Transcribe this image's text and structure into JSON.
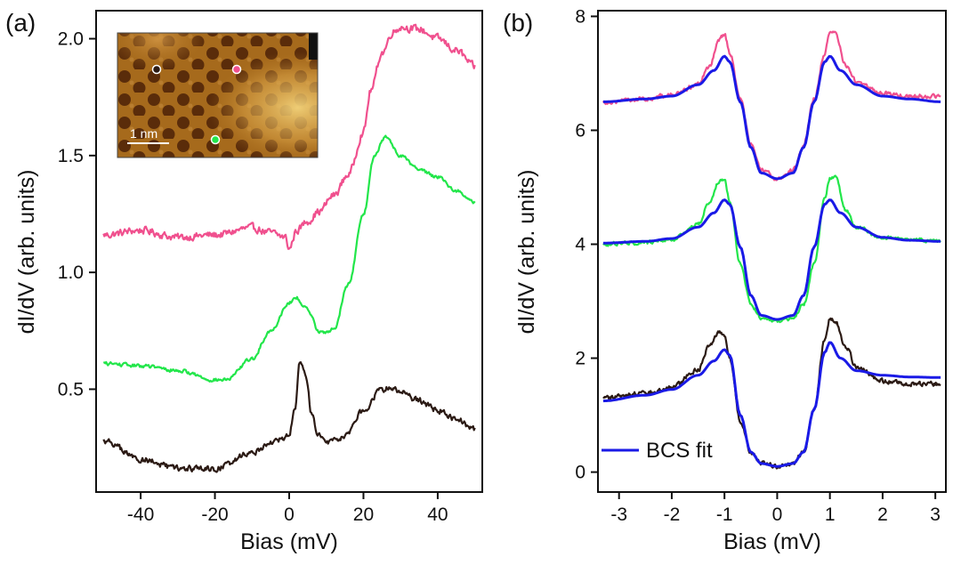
{
  "colors": {
    "pink": "#f0508e",
    "green": "#22e64a",
    "black": "#2b1a14",
    "fit": "#1a1ae6"
  },
  "chart_data": [
    {
      "panel": "(a)",
      "type": "line",
      "xlabel": "Bias (mV)",
      "ylabel": "dI/dV (arb. units)",
      "xlim": [
        -52,
        52
      ],
      "ylim": [
        0.06,
        2.12
      ],
      "xticks": [
        -40,
        -20,
        0,
        20,
        40
      ],
      "yticks": [
        0.5,
        1.0,
        1.5,
        2.0
      ],
      "ytick_labels": [
        "0.5",
        "1.0",
        "1.5",
        "2.0"
      ],
      "grid": false,
      "series": [
        {
          "color": "#f0508e",
          "noise": 0.025,
          "x": [
            -50,
            -40,
            -30,
            -20,
            -10,
            -5,
            -1,
            0,
            2,
            5,
            8,
            12,
            16,
            20,
            22,
            25,
            28,
            30,
            35,
            40,
            45,
            50
          ],
          "y": [
            1.16,
            1.18,
            1.15,
            1.16,
            1.19,
            1.17,
            1.15,
            1.1,
            1.18,
            1.22,
            1.26,
            1.33,
            1.42,
            1.6,
            1.78,
            1.94,
            2.03,
            2.05,
            2.04,
            2.0,
            1.95,
            1.88
          ]
        },
        {
          "color": "#22e64a",
          "noise": 0.012,
          "x": [
            -50,
            -40,
            -30,
            -20,
            -17,
            -10,
            -5,
            0,
            2,
            5,
            8,
            10,
            12,
            16,
            20,
            23,
            26,
            30,
            35,
            40,
            45,
            50
          ],
          "y": [
            0.61,
            0.6,
            0.58,
            0.54,
            0.54,
            0.63,
            0.75,
            0.87,
            0.89,
            0.84,
            0.75,
            0.74,
            0.76,
            0.95,
            1.25,
            1.5,
            1.58,
            1.5,
            1.44,
            1.41,
            1.35,
            1.3
          ]
        },
        {
          "color": "#2b1a14",
          "noise": 0.02,
          "x": [
            -50,
            -40,
            -30,
            -20,
            -10,
            -5,
            0,
            1.5,
            3,
            4.5,
            6,
            8,
            10,
            15,
            20,
            25,
            28,
            30,
            35,
            40,
            45,
            50
          ],
          "y": [
            0.28,
            0.2,
            0.16,
            0.16,
            0.23,
            0.27,
            0.3,
            0.42,
            0.62,
            0.55,
            0.4,
            0.3,
            0.27,
            0.3,
            0.41,
            0.5,
            0.51,
            0.49,
            0.45,
            0.41,
            0.37,
            0.33
          ]
        }
      ],
      "inset": {
        "type": "image",
        "description": "STM topograph",
        "scale_bar_label": "1 nm",
        "markers": [
          {
            "name": "black-site",
            "color": "#2b1a14"
          },
          {
            "name": "pink-site",
            "color": "#f0508e"
          },
          {
            "name": "green-site",
            "color": "#22e64a"
          }
        ]
      }
    },
    {
      "panel": "(b)",
      "type": "line",
      "xlabel": "Bias (mV)",
      "ylabel": "dI/dV (arb. units)",
      "xlim": [
        -3.4,
        3.2
      ],
      "ylim": [
        -0.35,
        8.1
      ],
      "xticks": [
        -3,
        -2,
        -1,
        0,
        1,
        2,
        3
      ],
      "yticks": [
        0,
        2,
        4,
        6,
        8
      ],
      "ytick_labels": [
        "0",
        "2",
        "4",
        "6",
        "8"
      ],
      "grid": false,
      "legend": {
        "placement": "bottom-left",
        "entries": [
          {
            "name": "BCS fit",
            "color": "#1a1ae6"
          }
        ]
      },
      "series": [
        {
          "color": "#f0508e",
          "noise": 0.06,
          "x": [
            -3.3,
            -2.5,
            -2.0,
            -1.5,
            -1.3,
            -1.1,
            -1.0,
            -0.9,
            -0.7,
            -0.5,
            -0.3,
            0.0,
            0.3,
            0.5,
            0.7,
            0.9,
            1.0,
            1.1,
            1.3,
            1.5,
            2.0,
            2.5,
            3.1
          ],
          "y": [
            6.5,
            6.55,
            6.62,
            6.8,
            7.1,
            7.6,
            7.7,
            7.35,
            6.55,
            5.75,
            5.3,
            5.15,
            5.3,
            5.75,
            6.55,
            7.35,
            7.7,
            7.7,
            7.15,
            6.85,
            6.65,
            6.6,
            6.6
          ]
        },
        {
          "color": "#1a1ae6",
          "noise": 0,
          "x": [
            -3.3,
            -2.5,
            -2.0,
            -1.5,
            -1.2,
            -1.0,
            -0.9,
            -0.7,
            -0.5,
            -0.3,
            0.0,
            0.3,
            0.5,
            0.7,
            0.9,
            1.0,
            1.2,
            1.5,
            2.0,
            2.5,
            3.1
          ],
          "y": [
            6.5,
            6.55,
            6.6,
            6.8,
            7.05,
            7.3,
            7.2,
            6.5,
            5.7,
            5.25,
            5.15,
            5.25,
            5.7,
            6.5,
            7.2,
            7.3,
            7.05,
            6.8,
            6.6,
            6.55,
            6.5
          ]
        },
        {
          "color": "#22e64a",
          "noise": 0.05,
          "x": [
            -3.3,
            -2.5,
            -2.0,
            -1.5,
            -1.3,
            -1.1,
            -1.0,
            -0.9,
            -0.7,
            -0.5,
            -0.3,
            0.0,
            0.3,
            0.5,
            0.7,
            0.9,
            1.0,
            1.1,
            1.3,
            1.5,
            2.0,
            2.5,
            3.1
          ],
          "y": [
            4.0,
            4.03,
            4.08,
            4.35,
            4.7,
            5.1,
            5.15,
            4.75,
            3.65,
            2.95,
            2.7,
            2.65,
            2.7,
            2.95,
            3.65,
            4.8,
            5.15,
            5.2,
            4.6,
            4.3,
            4.12,
            4.08,
            4.05
          ]
        },
        {
          "color": "#1a1ae6",
          "noise": 0,
          "x": [
            -3.3,
            -2.5,
            -2.0,
            -1.5,
            -1.2,
            -1.0,
            -0.9,
            -0.7,
            -0.5,
            -0.3,
            0.0,
            0.3,
            0.5,
            0.7,
            0.9,
            1.0,
            1.2,
            1.5,
            2.0,
            2.5,
            3.1
          ],
          "y": [
            4.02,
            4.05,
            4.1,
            4.3,
            4.55,
            4.78,
            4.7,
            3.95,
            3.1,
            2.75,
            2.68,
            2.75,
            3.1,
            3.95,
            4.7,
            4.78,
            4.55,
            4.3,
            4.12,
            4.07,
            4.05
          ]
        },
        {
          "color": "#2b1a14",
          "noise": 0.06,
          "x": [
            -3.3,
            -2.5,
            -2.0,
            -1.5,
            -1.3,
            -1.1,
            -1.0,
            -0.9,
            -0.7,
            -0.5,
            -0.3,
            0.0,
            0.3,
            0.5,
            0.7,
            0.9,
            1.0,
            1.1,
            1.3,
            1.5,
            2.0,
            2.5,
            3.1
          ],
          "y": [
            1.3,
            1.38,
            1.5,
            1.8,
            2.2,
            2.45,
            2.4,
            2.0,
            0.9,
            0.35,
            0.15,
            0.1,
            0.15,
            0.35,
            1.1,
            2.3,
            2.7,
            2.65,
            2.2,
            1.85,
            1.6,
            1.55,
            1.55
          ]
        },
        {
          "color": "#1a1ae6",
          "noise": 0,
          "x": [
            -3.3,
            -2.5,
            -2.0,
            -1.5,
            -1.2,
            -1.0,
            -0.9,
            -0.7,
            -0.5,
            -0.3,
            0.0,
            0.3,
            0.5,
            0.7,
            0.9,
            1.0,
            1.2,
            1.5,
            2.0,
            2.5,
            3.1
          ],
          "y": [
            1.25,
            1.35,
            1.45,
            1.7,
            1.95,
            2.15,
            2.05,
            1.0,
            0.35,
            0.15,
            0.1,
            0.15,
            0.35,
            1.1,
            2.1,
            2.28,
            2.0,
            1.78,
            1.7,
            1.67,
            1.66
          ]
        }
      ]
    }
  ]
}
